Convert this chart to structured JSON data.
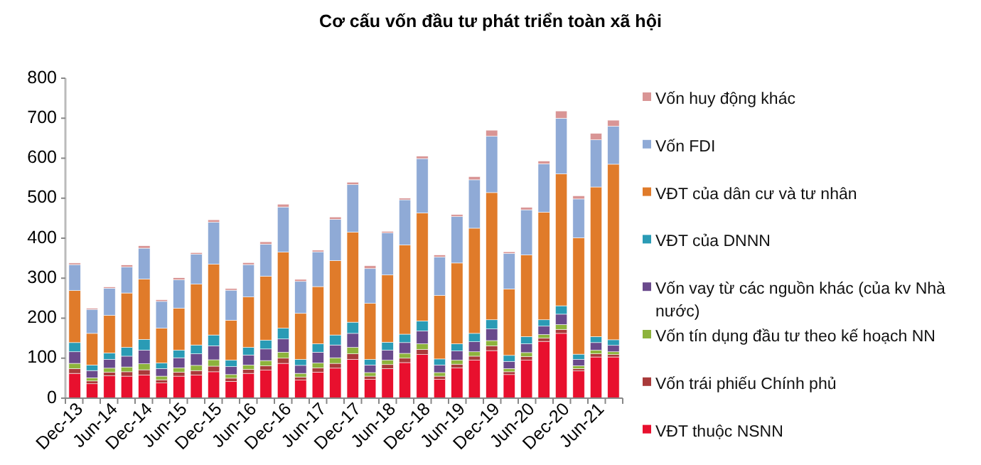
{
  "chart_data": {
    "type": "bar",
    "title": "Cơ cấu vốn đầu tư phát triển toàn xã hội",
    "stacked": true,
    "legend": "right",
    "grid": false,
    "categories": [
      "Dec-13",
      null,
      "Jun-14",
      null,
      "Dec-14",
      null,
      "Jun-15",
      null,
      "Dec-15",
      null,
      "Jun-16",
      null,
      "Dec-16",
      null,
      "Jun-17",
      null,
      "Dec-17",
      null,
      "Jun-18",
      null,
      "Dec-18",
      null,
      "Jun-19",
      null,
      "Dec-19",
      null,
      "Jun-20",
      null,
      "Dec-20",
      null,
      "Jun-21",
      null
    ],
    "ylim": [
      0,
      800
    ],
    "yticks": [
      0,
      100,
      200,
      300,
      400,
      500,
      600,
      700,
      800
    ],
    "series": [
      {
        "name": "VĐT thuộc NSNN",
        "color": "#e8102e",
        "values": [
          62,
          36,
          56,
          55,
          58,
          38,
          55,
          58,
          66,
          42,
          62,
          70,
          87,
          45,
          65,
          75,
          97,
          47,
          74,
          89,
          109,
          47,
          76,
          95,
          119,
          59,
          95,
          142,
          162,
          68,
          103,
          103
        ]
      },
      {
        "name": "Vốn trái phiếu Chính phủ",
        "color": "#a93a3a",
        "values": [
          12,
          7,
          9,
          11,
          13,
          8,
          10,
          11,
          14,
          8,
          10,
          11,
          13,
          8,
          11,
          12,
          14,
          8,
          10,
          11,
          13,
          8,
          9,
          10,
          12,
          7,
          9,
          8,
          10,
          6,
          8,
          6
        ]
      },
      {
        "name": "Vốn tín dụng đầu tư theo kế hoạch NN",
        "color": "#8db33c",
        "values": [
          13,
          8,
          10,
          12,
          15,
          9,
          11,
          13,
          16,
          9,
          11,
          13,
          15,
          9,
          12,
          14,
          16,
          9,
          11,
          12,
          14,
          9,
          10,
          11,
          13,
          8,
          10,
          9,
          12,
          7,
          9,
          7
        ]
      },
      {
        "name": "Vốn vay từ các nguồn khác (của kv Nhà nước)",
        "color": "#6a4a8c",
        "values": [
          29,
          18,
          22,
          27,
          34,
          19,
          25,
          29,
          35,
          20,
          25,
          29,
          33,
          20,
          27,
          32,
          35,
          19,
          25,
          27,
          32,
          19,
          23,
          25,
          29,
          18,
          22,
          21,
          26,
          16,
          19,
          16
        ]
      },
      {
        "name": "VĐT của DNNN",
        "color": "#2a9bb5",
        "values": [
          23,
          14,
          16,
          22,
          27,
          14,
          19,
          22,
          27,
          16,
          19,
          22,
          27,
          15,
          21,
          25,
          28,
          14,
          20,
          21,
          25,
          15,
          18,
          21,
          23,
          15,
          18,
          16,
          21,
          13,
          15,
          14
        ]
      },
      {
        "name": "VĐT của dân cư và tư nhân",
        "color": "#e07b2a",
        "values": [
          130,
          79,
          94,
          136,
          151,
          87,
          105,
          152,
          177,
          100,
          126,
          160,
          190,
          115,
          143,
          186,
          225,
          140,
          168,
          223,
          270,
          159,
          202,
          263,
          318,
          166,
          204,
          269,
          330,
          291,
          374,
          439
        ]
      },
      {
        "name": "Vốn FDI",
        "color": "#8faad6",
        "values": [
          65,
          60,
          68,
          65,
          77,
          67,
          71,
          75,
          105,
          75,
          81,
          80,
          113,
          80,
          87,
          103,
          119,
          87,
          105,
          113,
          136,
          96,
          116,
          121,
          141,
          89,
          113,
          121,
          139,
          97,
          118,
          95
        ]
      },
      {
        "name": "Vốn huy động khác",
        "color": "#d99595",
        "values": [
          4,
          3,
          3,
          5,
          6,
          4,
          5,
          4,
          6,
          4,
          5,
          6,
          7,
          5,
          4,
          6,
          6,
          7,
          4,
          4,
          6,
          5,
          5,
          8,
          15,
          4,
          6,
          7,
          18,
          8,
          16,
          15
        ]
      }
    ]
  }
}
